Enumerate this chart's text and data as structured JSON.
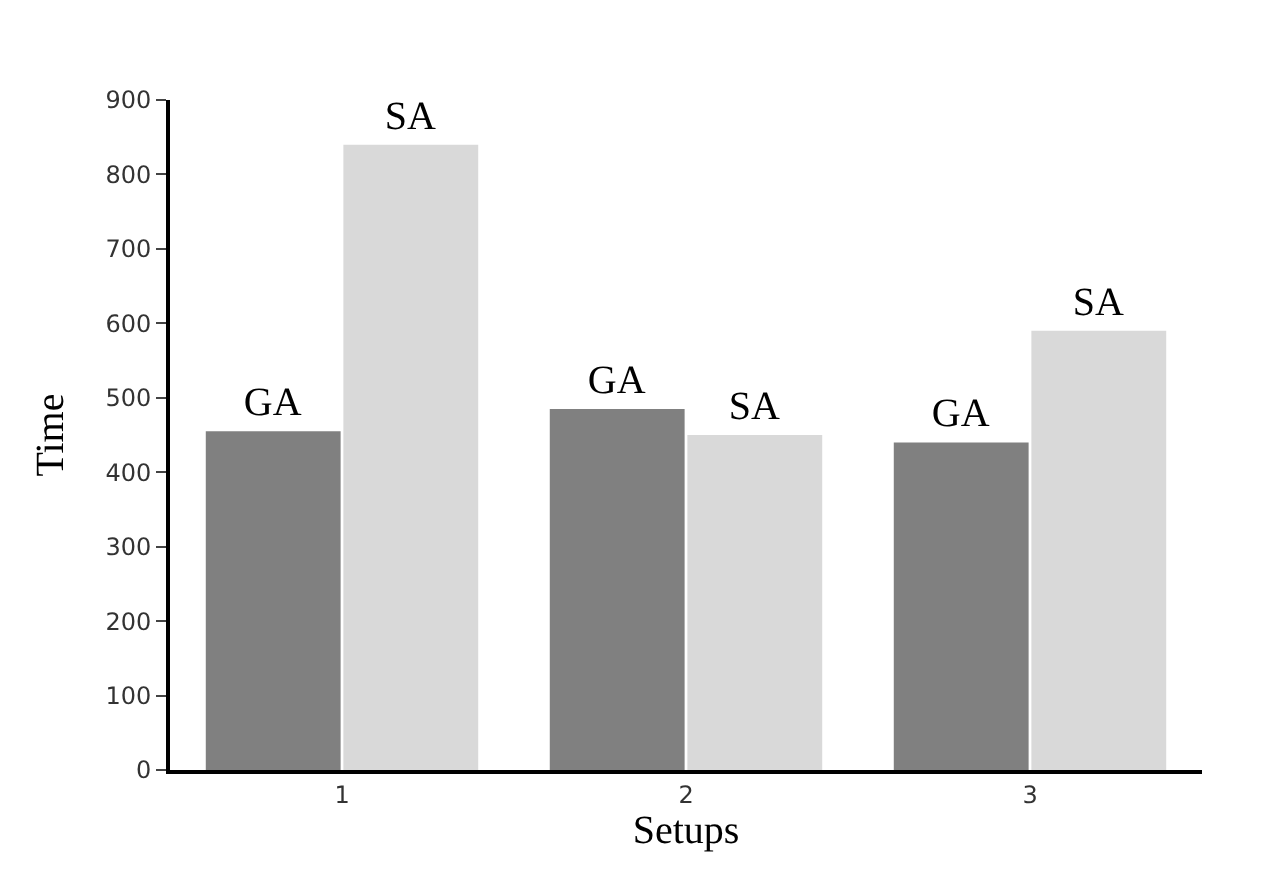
{
  "chart_data": {
    "type": "bar",
    "xlabel": "Setups",
    "ylabel": "Time",
    "categories": [
      "1",
      "2",
      "3"
    ],
    "series": [
      {
        "name": "GA",
        "color": "#808080",
        "values": [
          455,
          485,
          440
        ]
      },
      {
        "name": "SA",
        "color": "#d9d9d9",
        "values": [
          840,
          450,
          590
        ]
      }
    ],
    "ylim": [
      0,
      900
    ],
    "yticks": [
      0,
      100,
      200,
      300,
      400,
      500,
      600,
      700,
      800,
      900
    ],
    "legend": false
  }
}
